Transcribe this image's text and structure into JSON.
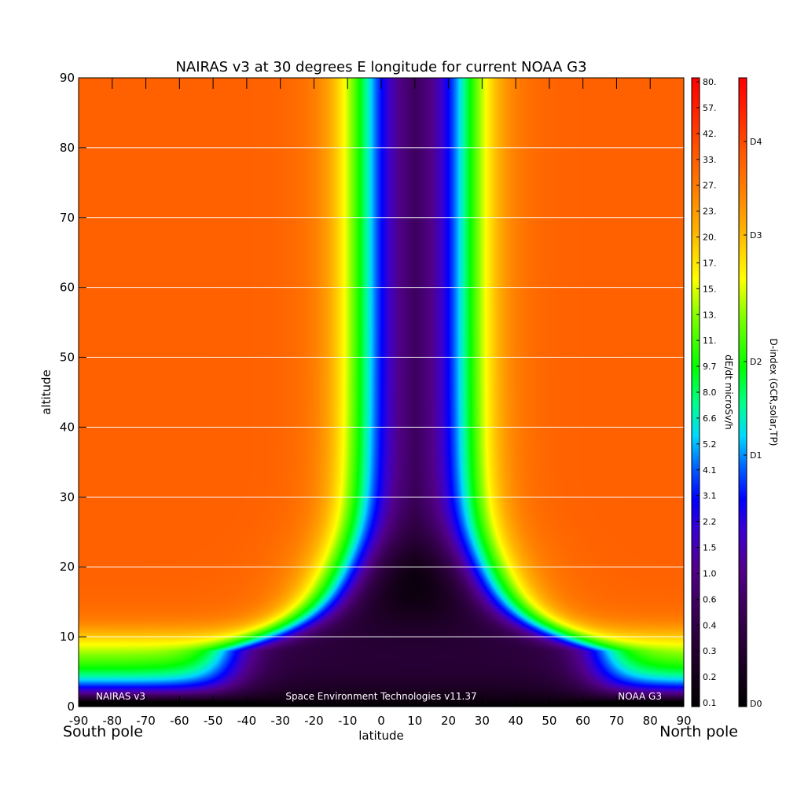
{
  "chart_data": {
    "type": "heatmap",
    "title": "NAIRAS v3 at 30 degrees E longitude for current NOAA G3",
    "xlabel": "latitude",
    "ylabel": "altitude",
    "xlim": [
      -90,
      90
    ],
    "ylim": [
      0,
      90
    ],
    "x_ticks": [
      "-90",
      "-80",
      "-70",
      "-60",
      "-50",
      "-40",
      "-30",
      "-20",
      "-10",
      "0",
      "10",
      "20",
      "30",
      "40",
      "50",
      "60",
      "70",
      "80",
      "90"
    ],
    "y_ticks": [
      "0",
      "10",
      "20",
      "30",
      "40",
      "50",
      "60",
      "70",
      "80",
      "90"
    ],
    "x_tick_values": [
      -90,
      -80,
      -70,
      -60,
      -50,
      -40,
      -30,
      -20,
      -10,
      0,
      10,
      20,
      30,
      40,
      50,
      60,
      70,
      80,
      90
    ],
    "y_tick_values": [
      0,
      10,
      20,
      30,
      40,
      50,
      60,
      70,
      80,
      90
    ],
    "grid_y": [
      10,
      20,
      30,
      40,
      50,
      60,
      70,
      80
    ],
    "left_pole_label": "South pole",
    "right_pole_label": "North pole",
    "footer_left": "NAIRAS v3",
    "footer_center": "Space Environment Technologies v11.37",
    "footer_right": "NOAA G3",
    "colorbar_dose": {
      "label": "dE/dt microSv/h",
      "ticks": [
        "80.",
        "57.",
        "42.",
        "33.",
        "27.",
        "23.",
        "20.",
        "17.",
        "15.",
        "13.",
        "11.",
        "9.7",
        "8.0",
        "6.6",
        "5.2",
        "4.1",
        "3.1",
        "2.2",
        "1.5",
        "1.0",
        "0.6",
        "0.4",
        "0.3",
        "0.2",
        "0.1"
      ]
    },
    "colorbar_dindex": {
      "label": "D-index (GCR,solar,TP)",
      "ticks": [
        "D4",
        "D3",
        "D2",
        "D1",
        "D0"
      ]
    },
    "field_description": {
      "equatorial_min_dose": 0.1,
      "polar_max_dose": 33,
      "surface_dose": 0.1
    }
  }
}
